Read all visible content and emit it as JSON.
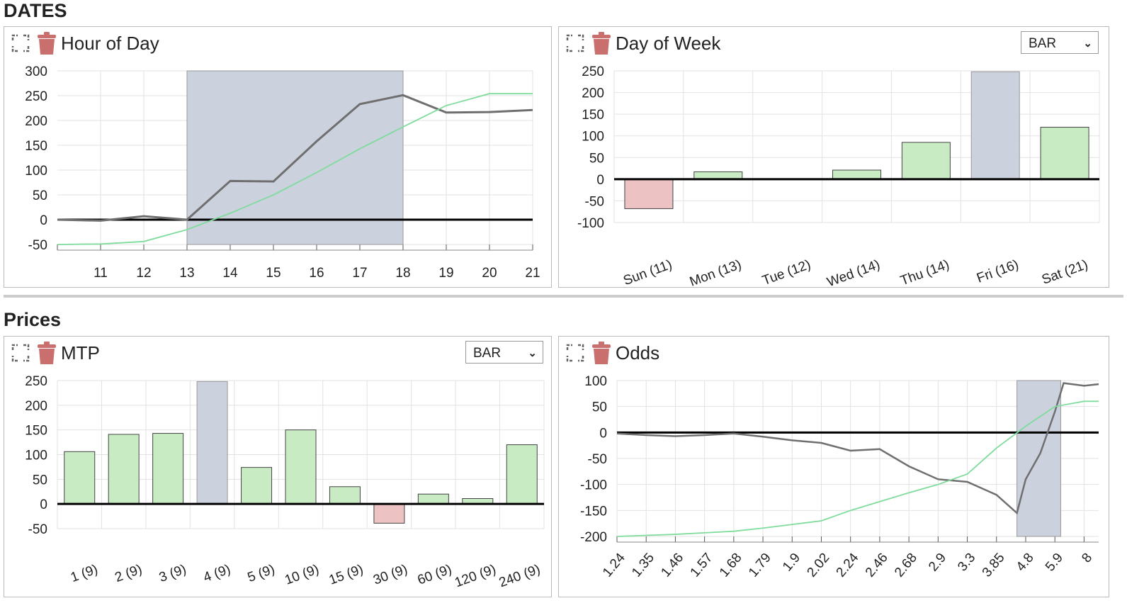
{
  "sections": {
    "dates": "DATES",
    "prices": "Prices"
  },
  "colors": {
    "positive": "#c9ebc4",
    "positive_stroke": "#444",
    "negative": "#ecc2c2",
    "highlight": "#cbd1dd",
    "highlight_stroke": "#999",
    "line_dark": "#6f6f6f",
    "line_green": "#7fdc9c",
    "zero": "#000",
    "grid": "#e2e2e2"
  },
  "icons": {
    "expand": "expand-icon",
    "delete": "trash-icon"
  },
  "panels": {
    "hour": {
      "title": "Hour of Day"
    },
    "dow": {
      "title": "Day of Week",
      "select": "BAR"
    },
    "mtp": {
      "title": "MTP",
      "select": "BAR"
    },
    "odds": {
      "title": "Odds"
    }
  },
  "chart_data": [
    {
      "id": "hour",
      "type": "line",
      "x_ticks": [
        11,
        12,
        13,
        14,
        15,
        16,
        17,
        18,
        19,
        20,
        21
      ],
      "xlim": [
        10,
        21
      ],
      "ylim": [
        -50,
        300
      ],
      "y_ticks": [
        -50,
        0,
        50,
        100,
        150,
        200,
        250,
        300
      ],
      "highlight_range": [
        13,
        18
      ],
      "series": [
        {
          "x": [
            10,
            11,
            12,
            13,
            14,
            15,
            16,
            17,
            18,
            19,
            20,
            21
          ],
          "y": [
            0,
            -2,
            7,
            0,
            78,
            77,
            158,
            233,
            251,
            216,
            217,
            221
          ]
        },
        {
          "x": [
            10,
            11,
            12,
            13,
            14,
            15,
            16,
            17,
            18,
            19,
            20,
            21
          ],
          "y": [
            -50,
            -49,
            -44,
            -20,
            13,
            50,
            95,
            143,
            187,
            230,
            254,
            254
          ]
        }
      ]
    },
    {
      "id": "dow",
      "type": "bar",
      "categories": [
        "Sun (11)",
        "Mon (13)",
        "Tue (12)",
        "Wed (14)",
        "Thu (14)",
        "Fri (16)",
        "Sat (21)"
      ],
      "values": [
        -68,
        17,
        0,
        21,
        85,
        248,
        120
      ],
      "highlight_index": 5,
      "ylim": [
        -100,
        250
      ],
      "y_ticks": [
        -100,
        -50,
        0,
        50,
        100,
        150,
        200,
        250
      ]
    },
    {
      "id": "mtp",
      "type": "bar",
      "categories": [
        "1 (9)",
        "2 (9)",
        "3 (9)",
        "4 (9)",
        "5 (9)",
        "10 (9)",
        "15 (9)",
        "30 (9)",
        "60 (9)",
        "120 (9)",
        "240 (9)"
      ],
      "values": [
        106,
        141,
        143,
        248,
        74,
        150,
        35,
        -39,
        20,
        11,
        120
      ],
      "highlight_index": 3,
      "ylim": [
        -50,
        250
      ],
      "y_ticks": [
        -50,
        0,
        50,
        100,
        150,
        200,
        250
      ]
    },
    {
      "id": "odds",
      "type": "line",
      "x_ticks": [
        "1.24",
        "1.35",
        "1.46",
        "1.57",
        "1.68",
        "1.79",
        "1.9",
        "2.02",
        "2.24",
        "2.46",
        "2.68",
        "2.9",
        "3.3",
        "3.85",
        "4.8",
        "5.9",
        "8"
      ],
      "ylim": [
        -200,
        100
      ],
      "y_ticks": [
        -200,
        -150,
        -100,
        -50,
        0,
        50,
        100
      ],
      "highlight_range_index": [
        13.7,
        15.2
      ],
      "series": [
        {
          "x": [
            0,
            1,
            2,
            3,
            4,
            5,
            6,
            7,
            8,
            9,
            10,
            11,
            12,
            13,
            13.7,
            14,
            14.5,
            15,
            15.3,
            16,
            16.5
          ],
          "y": [
            -2,
            -5,
            -7,
            -5,
            -2,
            -8,
            -15,
            -20,
            -35,
            -32,
            -65,
            -90,
            -95,
            -120,
            -155,
            -90,
            -40,
            40,
            95,
            90,
            93
          ]
        },
        {
          "x": [
            0,
            1,
            2,
            3,
            4,
            5,
            6,
            7,
            8,
            9,
            10,
            11,
            12,
            13,
            14,
            15,
            16,
            16.5
          ],
          "y": [
            -200,
            -198,
            -196,
            -193,
            -190,
            -184,
            -177,
            -170,
            -150,
            -133,
            -116,
            -100,
            -80,
            -30,
            12,
            50,
            60,
            60
          ]
        }
      ]
    }
  ]
}
